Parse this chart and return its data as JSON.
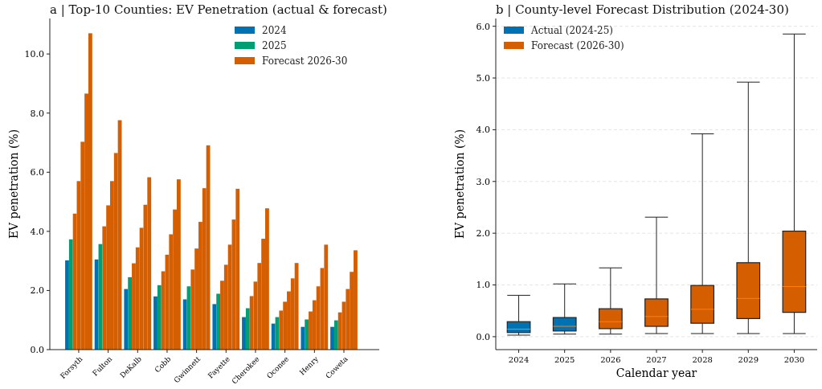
{
  "chart_data": [
    {
      "type": "bar",
      "title": "a  |  Top-10 Counties: EV Penetration (actual & forecast)",
      "ylabel": "EV penetration (%)",
      "categories": [
        "Forsyth",
        "Fulton",
        "DeKalb",
        "Cobb",
        "Gwinnett",
        "Fayette",
        "Cherokee",
        "Oconee",
        "Henry",
        "Coweta"
      ],
      "series": [
        {
          "name": "2024",
          "color": "#0072b2",
          "values": [
            3.02,
            3.05,
            2.05,
            1.8,
            1.7,
            1.54,
            1.1,
            0.88,
            0.77,
            0.77
          ]
        },
        {
          "name": "2025",
          "color": "#009e73",
          "values": [
            3.73,
            3.57,
            2.45,
            2.18,
            2.14,
            1.89,
            1.4,
            1.1,
            1.02,
            0.99
          ]
        },
        {
          "name": "Forecast 2026-30",
          "color": "#d55e00",
          "values": [
            4.6,
            4.17,
            2.92,
            2.65,
            2.71,
            2.33,
            1.81,
            1.32,
            1.29,
            1.26
          ]
        },
        {
          "color": "#d55e00",
          "values": [
            5.7,
            4.88,
            3.46,
            3.21,
            3.42,
            2.87,
            2.3,
            1.62,
            1.67,
            1.62
          ]
        },
        {
          "color": "#d55e00",
          "values": [
            7.03,
            5.7,
            4.12,
            3.9,
            4.32,
            3.55,
            2.93,
            1.97,
            2.14,
            2.05
          ]
        },
        {
          "color": "#d55e00",
          "values": [
            8.66,
            6.65,
            4.9,
            4.74,
            5.46,
            4.4,
            3.75,
            2.41,
            2.76,
            2.63
          ]
        },
        {
          "color": "#d55e00",
          "values": [
            10.7,
            7.76,
            5.83,
            5.76,
            6.91,
            5.44,
            4.78,
            2.93,
            3.55,
            3.36
          ]
        }
      ],
      "ylim": [
        0,
        11.2
      ],
      "yticks": [
        {
          "value": 0,
          "label": "0.0"
        },
        {
          "value": 2,
          "label": "2.0"
        },
        {
          "value": 4,
          "label": "4.0"
        },
        {
          "value": 6,
          "label": "6.0"
        },
        {
          "value": 8,
          "label": "8.0"
        },
        {
          "value": 10,
          "label": "10.0"
        }
      ],
      "grid": false,
      "legend": "top right"
    },
    {
      "type": "box",
      "title": "b  |  County-level Forecast Distribution (2024-30)",
      "xlabel": "Calendar year",
      "ylabel": "EV penetration (%)",
      "categories": [
        "2024",
        "2025",
        "2026",
        "2027",
        "2028",
        "2029",
        "2030"
      ],
      "series": [
        {
          "name": "Actual (2024-25)",
          "color": "#0072b2",
          "boxes": [
            {
              "low": 0.03,
              "q1": 0.08,
              "median": 0.145,
              "q3": 0.29,
              "high": 0.8
            },
            {
              "low": 0.05,
              "q1": 0.11,
              "median": 0.2,
              "q3": 0.37,
              "high": 1.02
            },
            null,
            null,
            null,
            null,
            null
          ]
        },
        {
          "name": "Forecast (2026-30)",
          "color": "#d55e00",
          "boxes": [
            null,
            null,
            {
              "low": 0.05,
              "q1": 0.155,
              "median": 0.29,
              "q3": 0.54,
              "high": 1.33
            },
            {
              "low": 0.06,
              "q1": 0.2,
              "median": 0.39,
              "q3": 0.73,
              "high": 2.31
            },
            {
              "low": 0.06,
              "q1": 0.26,
              "median": 0.53,
              "q3": 0.99,
              "high": 3.92
            },
            {
              "low": 0.06,
              "q1": 0.35,
              "median": 0.74,
              "q3": 1.43,
              "high": 4.92
            },
            {
              "low": 0.06,
              "q1": 0.47,
              "median": 0.97,
              "q3": 2.04,
              "high": 5.85
            }
          ]
        }
      ],
      "ylim": [
        -0.25,
        6.15
      ],
      "yticks": [
        {
          "value": 0,
          "label": "0.0"
        },
        {
          "value": 1,
          "label": "1.0"
        },
        {
          "value": 2,
          "label": "2.0"
        },
        {
          "value": 3,
          "label": "3.0"
        },
        {
          "value": 4,
          "label": "4.0"
        },
        {
          "value": 5,
          "label": "5.0"
        },
        {
          "value": 6,
          "label": "6.0"
        }
      ],
      "grid": "y",
      "legend": "top left"
    }
  ]
}
